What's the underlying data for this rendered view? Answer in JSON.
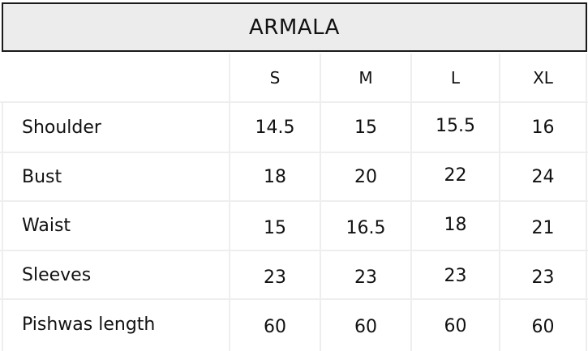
{
  "title": "ARMALA",
  "size_headers": [
    "S",
    "M",
    "L",
    "XL"
  ],
  "rows": [
    {
      "label": "Shoulder",
      "values": [
        "14.5",
        "15",
        "15.5",
        "16"
      ]
    },
    {
      "label": "Bust",
      "values": [
        "18",
        "20",
        "22",
        "24"
      ]
    },
    {
      "label": "Waist",
      "values": [
        "15",
        "16.5",
        "18",
        "21"
      ]
    },
    {
      "label": "Sleeves",
      "values": [
        "23",
        "23",
        "23",
        "23"
      ]
    },
    {
      "label": "Pishwas length",
      "values": [
        "60",
        "60",
        "60",
        "60"
      ]
    }
  ]
}
